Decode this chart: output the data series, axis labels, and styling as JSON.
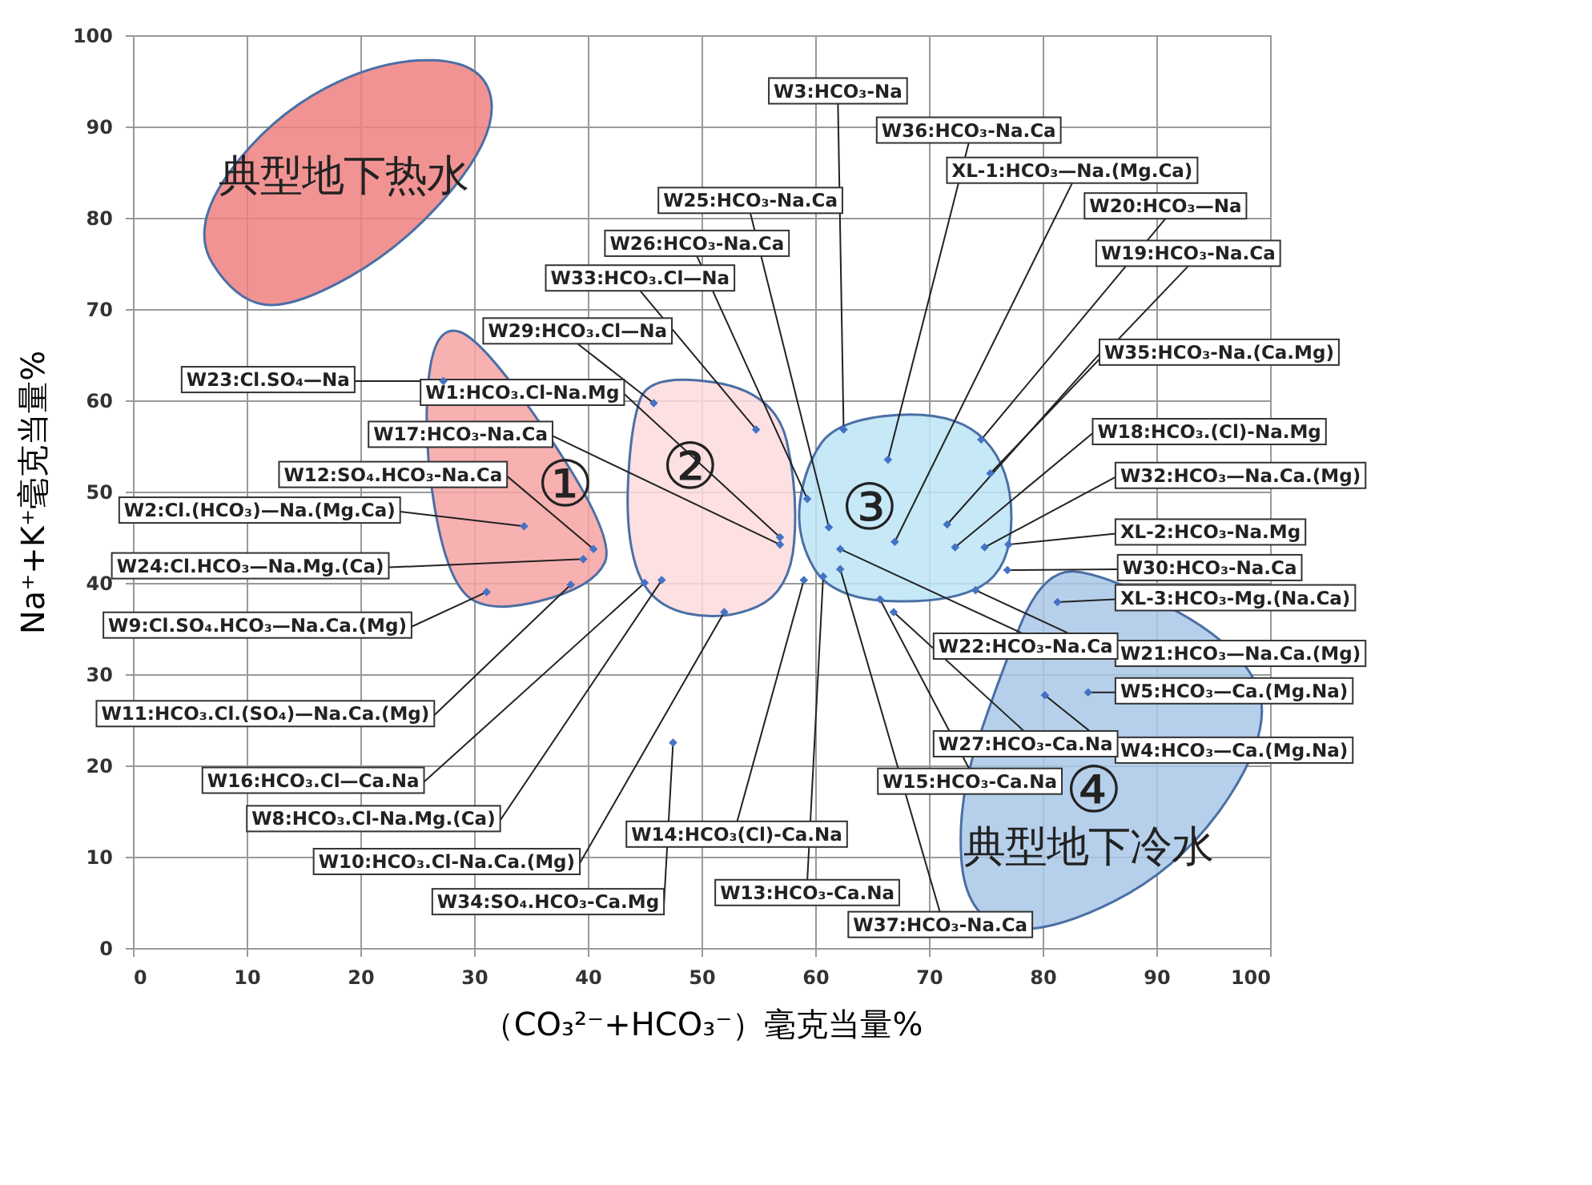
{
  "chart_data": {
    "type": "scatter",
    "xlabel": "（CO₃²⁻+HCO₃⁻）毫克当量%",
    "ylabel": "Na⁺+K⁺毫克当量%",
    "x": [
      27.3,
      56.9,
      56.9,
      40.5,
      34.4,
      39.6,
      31.1,
      38.5,
      45.0,
      46.5,
      52.0,
      47.5,
      45.8,
      54.8,
      59.3,
      61.2,
      62.5,
      66.4,
      67.0,
      74.6,
      75.4,
      71.6,
      72.3,
      74.9,
      77.0,
      76.9,
      81.3,
      74.1,
      84.0,
      80.2,
      62.2,
      66.9,
      65.7,
      59.0,
      60.7,
      62.2
    ],
    "values": [
      62.1,
      45.0,
      44.2,
      43.7,
      46.2,
      42.6,
      39.0,
      39.8,
      40.0,
      40.3,
      36.8,
      22.5,
      59.7,
      56.8,
      49.2,
      46.1,
      56.8,
      53.5,
      44.5,
      55.7,
      52.0,
      46.4,
      43.9,
      43.9,
      44.2,
      41.4,
      37.9,
      39.2,
      28.0,
      27.7,
      43.7,
      36.8,
      38.2,
      40.3,
      40.7,
      41.5
    ],
    "color": "#4472c4",
    "marker": "diamond",
    "grid": true,
    "xlim": [
      0,
      100
    ],
    "xticks": [
      0,
      10,
      20,
      30,
      40,
      50,
      60,
      70,
      80,
      90,
      100
    ],
    "ylim": [
      0,
      100
    ],
    "yticks": [
      0,
      10,
      20,
      30,
      40,
      50,
      60,
      70,
      80,
      90,
      100
    ],
    "annotations": [
      {
        "text": "W23:Cl.SO₄—Na",
        "x": 27.3,
        "y": 62.1
      },
      {
        "text": "W1:HCO₃.Cl-Na.Mg",
        "x": 56.9,
        "y": 45.0
      },
      {
        "text": "W17:HCO₃-Na.Ca",
        "x": 56.9,
        "y": 44.2
      },
      {
        "text": "W12:SO₄.HCO₃-Na.Ca",
        "x": 40.5,
        "y": 43.7
      },
      {
        "text": "W2:Cl.(HCO₃)—Na.(Mg.Ca)",
        "x": 34.4,
        "y": 46.2
      },
      {
        "text": "W24:Cl.HCO₃—Na.Mg.(Ca)",
        "x": 39.6,
        "y": 42.6
      },
      {
        "text": "W9:Cl.SO₄.HCO₃—Na.Ca.(Mg)",
        "x": 31.1,
        "y": 39.0
      },
      {
        "text": "W11:HCO₃.Cl.(SO₄)—Na.Ca.(Mg)",
        "x": 38.5,
        "y": 39.8
      },
      {
        "text": "W16:HCO₃.Cl—Ca.Na",
        "x": 45.0,
        "y": 40.0
      },
      {
        "text": "W8:HCO₃.Cl-Na.Mg.(Ca)",
        "x": 46.5,
        "y": 40.3
      },
      {
        "text": "W10:HCO₃.Cl-Na.Ca.(Mg)",
        "x": 52.0,
        "y": 36.8
      },
      {
        "text": "W34:SO₄.HCO₃-Ca.Mg",
        "x": 47.5,
        "y": 22.5
      },
      {
        "text": "W29:HCO₃.Cl—Na",
        "x": 45.8,
        "y": 59.7
      },
      {
        "text": "W33:HCO₃.Cl—Na",
        "x": 54.8,
        "y": 56.8
      },
      {
        "text": "W26:HCO₃-Na.Ca",
        "x": 59.3,
        "y": 49.2
      },
      {
        "text": "W25:HCO₃-Na.Ca",
        "x": 61.2,
        "y": 46.1
      },
      {
        "text": "W3:HCO₃-Na",
        "x": 62.5,
        "y": 56.8
      },
      {
        "text": "W36:HCO₃-Na.Ca",
        "x": 66.4,
        "y": 53.5
      },
      {
        "text": "XL-1:HCO₃—Na.(Mg.Ca)",
        "x": 67.0,
        "y": 44.5
      },
      {
        "text": "W20:HCO₃—Na",
        "x": 74.6,
        "y": 55.7
      },
      {
        "text": "W19:HCO₃-Na.Ca",
        "x": 75.4,
        "y": 52.0
      },
      {
        "text": "W35:HCO₃-Na.(Ca.Mg)",
        "x": 71.6,
        "y": 46.4
      },
      {
        "text": "W18:HCO₃.(Cl)-Na.Mg",
        "x": 72.3,
        "y": 43.9
      },
      {
        "text": "W32:HCO₃—Na.Ca.(Mg)",
        "x": 74.9,
        "y": 43.9
      },
      {
        "text": "XL-2:HCO₃-Na.Mg",
        "x": 77.0,
        "y": 44.2
      },
      {
        "text": "W30:HCO₃-Na.Ca",
        "x": 76.9,
        "y": 41.4
      },
      {
        "text": "XL-3:HCO₃-Mg.(Na.Ca)",
        "x": 81.3,
        "y": 37.9
      },
      {
        "text": "W21:HCO₃—Na.Ca.(Mg)",
        "x": 74.1,
        "y": 39.2
      },
      {
        "text": "W5:HCO₃—Ca.(Mg.Na)",
        "x": 84.0,
        "y": 28.0
      },
      {
        "text": "W4:HCO₃—Ca.(Mg.Na)",
        "x": 80.2,
        "y": 27.7
      },
      {
        "text": "W22:HCO₃-Na.Ca",
        "x": 62.2,
        "y": 43.7
      },
      {
        "text": "W27:HCO₃-Ca.Na",
        "x": 66.9,
        "y": 36.8
      },
      {
        "text": "W15:HCO₃-Ca.Na",
        "x": 65.7,
        "y": 38.2
      },
      {
        "text": "W14:HCO₃(Cl)-Ca.Na",
        "x": 59.0,
        "y": 40.3
      },
      {
        "text": "W13:HCO₃-Ca.Na",
        "x": 60.7,
        "y": 40.7
      },
      {
        "text": "W37:HCO₃-Na.Ca",
        "x": 62.2,
        "y": 41.5
      },
      "①",
      "②",
      "③",
      "④",
      "典型地下热水",
      "典型地下冷水"
    ]
  }
}
